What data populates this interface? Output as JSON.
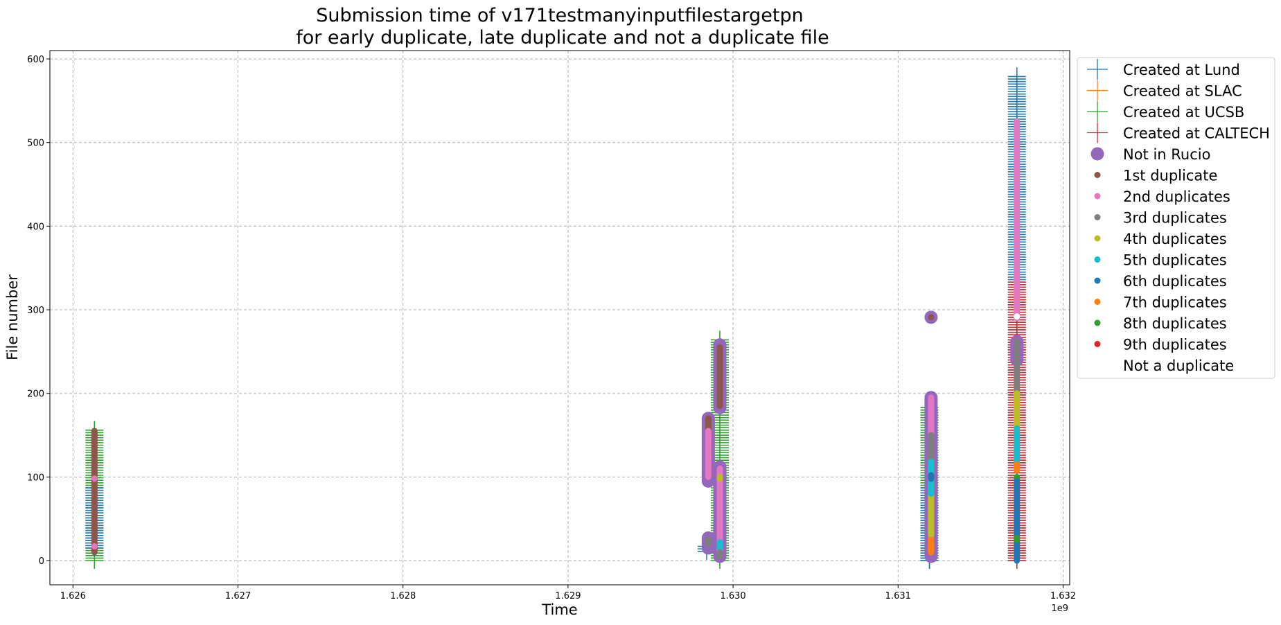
{
  "chart_data": {
    "type": "scatter",
    "title": [
      "Submission time of v171testmanyinputfilestargetpn",
      "for early duplicate, late duplicate and not a duplicate file"
    ],
    "xlabel": "Time",
    "ylabel": "File number",
    "x_offset_label": "1e9",
    "xlim": [
      1.62586,
      1.63204
    ],
    "ylim": [
      -29,
      610
    ],
    "x_ticks": [
      1.626,
      1.627,
      1.628,
      1.629,
      1.63,
      1.631,
      1.632
    ],
    "x_tick_labels": [
      "1.626",
      "1.627",
      "1.628",
      "1.629",
      "1.630",
      "1.631",
      "1.632"
    ],
    "y_ticks": [
      0,
      100,
      200,
      300,
      400,
      500,
      600
    ],
    "y_tick_labels": [
      "0",
      "100",
      "200",
      "300",
      "400",
      "500",
      "600"
    ],
    "grid": true,
    "legend_position": "outside-right",
    "legend": [
      {
        "label": "Created at Lund",
        "marker": "plus",
        "color": "#1f77b4"
      },
      {
        "label": "Created at SLAC",
        "marker": "plus",
        "color": "#ff7f0e"
      },
      {
        "label": "Created at UCSB",
        "marker": "plus",
        "color": "#2ca02c"
      },
      {
        "label": "Created at CALTECH",
        "marker": "plus",
        "color": "#d62728"
      },
      {
        "label": "Not in Rucio",
        "marker": "big-dot",
        "color": "#9467bd"
      },
      {
        "label": "1st duplicate",
        "marker": "dot",
        "color": "#8c564b"
      },
      {
        "label": "2nd duplicates",
        "marker": "dot",
        "color": "#e377c2"
      },
      {
        "label": "3rd duplicates",
        "marker": "dot",
        "color": "#7f7f7f"
      },
      {
        "label": "4th duplicates",
        "marker": "dot",
        "color": "#bcbd22"
      },
      {
        "label": "5th duplicates",
        "marker": "dot",
        "color": "#17becf"
      },
      {
        "label": "6th duplicates",
        "marker": "dot",
        "color": "#1f77b4"
      },
      {
        "label": "7th duplicates",
        "marker": "dot",
        "color": "#ff7f0e"
      },
      {
        "label": "8th duplicates",
        "marker": "dot",
        "color": "#2ca02c"
      },
      {
        "label": "9th duplicates",
        "marker": "dot",
        "color": "#d62728"
      },
      {
        "label": "Not a duplicate",
        "marker": "dot",
        "color": "#ffffff"
      }
    ],
    "site_groups": [
      {
        "site": "Created at UCSB",
        "x": 1.62613,
        "y_from": 0,
        "y_to": 157,
        "color": "#2ca02c"
      },
      {
        "site": "Created at Lund",
        "x": 1.62613,
        "y_from": 15,
        "y_to": 88,
        "color": "#1f77b4"
      },
      {
        "site": "Created at Lund",
        "x": 1.62984,
        "y_from": 11,
        "y_to": 19,
        "color": "#1f77b4"
      },
      {
        "site": "Created at UCSB",
        "x": 1.62992,
        "y_from": 0,
        "y_to": 265,
        "color": "#2ca02c"
      },
      {
        "site": "Created at UCSB",
        "x": 1.63119,
        "y_from": 0,
        "y_to": 185,
        "color": "#2ca02c"
      },
      {
        "site": "Created at Lund",
        "x": 1.63119,
        "y_from": 0,
        "y_to": 88,
        "color": "#1f77b4"
      },
      {
        "site": "Created at Lund",
        "x": 1.63172,
        "y_from": 0,
        "y_to": 580,
        "color": "#1f77b4"
      },
      {
        "site": "Created at CALTECH",
        "x": 1.63172,
        "y_from": 0,
        "y_to": 335,
        "color": "#d62728"
      }
    ],
    "not_in_rucio": [
      {
        "x": 1.62985,
        "y_from": 95,
        "y_to": 170
      },
      {
        "x": 1.62985,
        "y_from": 15,
        "y_to": 27
      },
      {
        "x": 1.62992,
        "y_from": 183,
        "y_to": 258
      },
      {
        "x": 1.62992,
        "y_from": 5,
        "y_to": 112
      },
      {
        "x": 1.6312,
        "y_from": 5,
        "y_to": 195
      },
      {
        "x": 1.6312,
        "y_from": 291,
        "y_to": 291
      },
      {
        "x": 1.63172,
        "y_from": 240,
        "y_to": 262
      }
    ],
    "duplicates": [
      {
        "order": "1st duplicate",
        "x": 1.62613,
        "y_from": 10,
        "y_to": 155
      },
      {
        "order": "2nd duplicates",
        "x": 1.62613,
        "y_from": 98,
        "y_to": 98
      },
      {
        "order": "2nd duplicates",
        "x": 1.62613,
        "y_from": 17,
        "y_to": 17
      },
      {
        "order": "1st duplicate",
        "x": 1.62985,
        "y_from": 100,
        "y_to": 170
      },
      {
        "order": "2nd duplicates",
        "x": 1.62985,
        "y_from": 100,
        "y_to": 155
      },
      {
        "order": "3rd duplicates",
        "x": 1.62985,
        "y_from": 20,
        "y_to": 25
      },
      {
        "order": "1st duplicate",
        "x": 1.62992,
        "y_from": 185,
        "y_to": 255
      },
      {
        "order": "2nd duplicates",
        "x": 1.62992,
        "y_from": 10,
        "y_to": 110
      },
      {
        "order": "4th duplicates",
        "x": 1.62992,
        "y_from": 98,
        "y_to": 100
      },
      {
        "order": "5th duplicates",
        "x": 1.62992,
        "y_from": 15,
        "y_to": 22
      },
      {
        "order": "3rd duplicates",
        "x": 1.62992,
        "y_from": 5,
        "y_to": 10
      },
      {
        "order": "2nd duplicates",
        "x": 1.6312,
        "y_from": 60,
        "y_to": 195
      },
      {
        "order": "3rd duplicates",
        "x": 1.6312,
        "y_from": 110,
        "y_to": 150
      },
      {
        "order": "4th duplicates",
        "x": 1.6312,
        "y_from": 30,
        "y_to": 115
      },
      {
        "order": "5th duplicates",
        "x": 1.6312,
        "y_from": 80,
        "y_to": 118
      },
      {
        "order": "6th duplicates",
        "x": 1.6312,
        "y_from": 98,
        "y_to": 102
      },
      {
        "order": "7th duplicates",
        "x": 1.6312,
        "y_from": 10,
        "y_to": 25
      },
      {
        "order": "1st duplicate",
        "x": 1.6312,
        "y_from": 291,
        "y_to": 291
      },
      {
        "order": "2nd duplicates",
        "x": 1.63172,
        "y_from": 290,
        "y_to": 525
      },
      {
        "order": "3rd duplicates",
        "x": 1.63172,
        "y_from": 190,
        "y_to": 262
      },
      {
        "order": "4th duplicates",
        "x": 1.63172,
        "y_from": 160,
        "y_to": 200
      },
      {
        "order": "5th duplicates",
        "x": 1.63172,
        "y_from": 115,
        "y_to": 158
      },
      {
        "order": "7th duplicates",
        "x": 1.63172,
        "y_from": 108,
        "y_to": 115
      },
      {
        "order": "8th duplicates",
        "x": 1.63172,
        "y_from": 96,
        "y_to": 100
      },
      {
        "order": "6th duplicates",
        "x": 1.63172,
        "y_from": 0,
        "y_to": 95
      },
      {
        "order": "8th duplicates",
        "x": 1.63172,
        "y_from": 25,
        "y_to": 27
      },
      {
        "order": "Not a duplicate",
        "x": 1.63172,
        "y_from": 292,
        "y_to": 292
      }
    ]
  }
}
